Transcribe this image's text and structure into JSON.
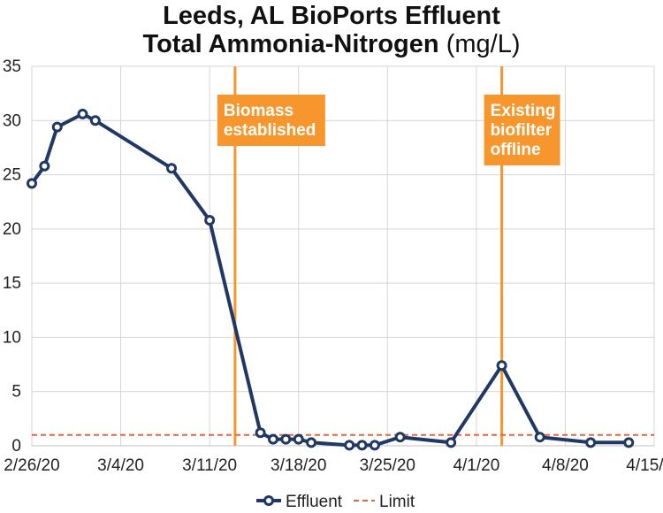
{
  "chart_data": {
    "type": "line",
    "title": "Leeds, AL BioPorts Effluent",
    "subtitle": "Total Ammonia-Nitrogen",
    "unit": "(mg/L)",
    "xlabel": "",
    "ylabel": "",
    "ylim": [
      0,
      35
    ],
    "yticks": [
      0,
      5,
      10,
      15,
      20,
      25,
      30,
      35
    ],
    "xlim": [
      "2020-02-26",
      "2020-04-15"
    ],
    "xticks": [
      "2/26/20",
      "3/4/20",
      "3/11/20",
      "3/18/20",
      "3/25/20",
      "4/1/20",
      "4/8/20",
      "4/15/20"
    ],
    "grid": true,
    "legend_position": "bottom",
    "series": [
      {
        "name": "Effluent",
        "color": "#1f3864",
        "x": [
          "2020-02-26",
          "2020-02-27",
          "2020-02-28",
          "2020-03-01",
          "2020-03-02",
          "2020-03-08",
          "2020-03-11",
          "2020-03-15",
          "2020-03-16",
          "2020-03-17",
          "2020-03-18",
          "2020-03-19",
          "2020-03-22",
          "2020-03-23",
          "2020-03-24",
          "2020-03-26",
          "2020-03-30",
          "2020-04-03",
          "2020-04-06",
          "2020-04-10",
          "2020-04-13"
        ],
        "y": [
          24.2,
          25.8,
          29.4,
          30.6,
          30.0,
          25.6,
          20.8,
          1.2,
          0.6,
          0.6,
          0.6,
          0.3,
          0.05,
          0.05,
          0.05,
          0.8,
          0.3,
          7.4,
          0.8,
          0.3,
          0.3
        ]
      },
      {
        "name": "Limit",
        "color": "#e8643c",
        "style": "dashed",
        "y": 1.0
      }
    ],
    "annotations": [
      {
        "date": "2020-03-13",
        "lines": [
          "Biomass",
          "established"
        ],
        "color": "#f7962d"
      },
      {
        "date": "2020-04-03",
        "lines": [
          "Existing",
          "biofilter",
          "offline"
        ],
        "color": "#f7962d"
      }
    ]
  }
}
